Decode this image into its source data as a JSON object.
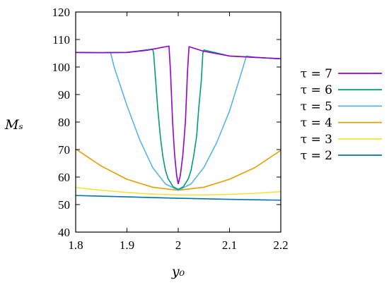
{
  "chart_data": {
    "type": "line",
    "xlabel": "y₀",
    "ylabel": "Mₛ",
    "xlim": [
      1.8,
      2.2
    ],
    "ylim": [
      40,
      120
    ],
    "x_ticks": [
      "1.8",
      "1.9",
      "2",
      "2.1",
      "2.2"
    ],
    "y_ticks": [
      "40",
      "50",
      "60",
      "70",
      "80",
      "90",
      "100",
      "110",
      "120"
    ],
    "grid": false,
    "legend_position": "right",
    "series": [
      {
        "name": "τ = 7",
        "color": "#9400d3",
        "segments": [
          [
            [
              1.8,
              105.3
            ],
            [
              1.85,
              105.2
            ],
            [
              1.9,
              105.3
            ],
            [
              1.94,
              106.1
            ],
            [
              1.97,
              107.2
            ],
            [
              1.982,
              107.6
            ],
            [
              1.985,
              98
            ],
            [
              1.989,
              80
            ],
            [
              1.993,
              68
            ],
            [
              1.997,
              60.5
            ],
            [
              2.0,
              57.5
            ]
          ],
          [
            [
              2.0,
              57.5
            ],
            [
              2.004,
              60.5
            ],
            [
              2.009,
              68
            ],
            [
              2.014,
              80
            ],
            [
              2.018,
              98
            ],
            [
              2.021,
              107.4
            ],
            [
              2.05,
              105.7
            ],
            [
              2.1,
              104
            ],
            [
              2.15,
              103.5
            ],
            [
              2.2,
              103
            ]
          ]
        ]
      },
      {
        "name": "τ = 6",
        "color": "#009e73",
        "segments": [
          [
            [
              1.8,
              105.3
            ],
            [
              1.85,
              105.2
            ],
            [
              1.9,
              105.3
            ],
            [
              1.95,
              106.5
            ],
            [
              1.952,
              105
            ],
            [
              1.956,
              95
            ],
            [
              1.96,
              85
            ],
            [
              1.965,
              75
            ],
            [
              1.97,
              67.5
            ],
            [
              1.975,
              62.5
            ],
            [
              1.98,
              59.5
            ],
            [
              1.99,
              56.5
            ],
            [
              2.0,
              55.5
            ],
            [
              2.01,
              56.5
            ],
            [
              2.02,
              59.5
            ],
            [
              2.025,
              62.5
            ],
            [
              2.03,
              67.5
            ],
            [
              2.036,
              75
            ],
            [
              2.04,
              85
            ],
            [
              2.045,
              95
            ],
            [
              2.048,
              105
            ],
            [
              2.05,
              106.2
            ],
            [
              2.1,
              104
            ],
            [
              2.15,
              103.5
            ],
            [
              2.2,
              103
            ]
          ]
        ]
      },
      {
        "name": "τ = 5",
        "color": "#56b4e9",
        "segments": [
          [
            [
              1.8,
              105.3
            ],
            [
              1.85,
              105.2
            ],
            [
              1.868,
              105.3
            ],
            [
              1.875,
              100
            ],
            [
              1.9,
              86
            ],
            [
              1.925,
              73.5
            ],
            [
              1.95,
              63.5
            ],
            [
              1.975,
              57.5
            ],
            [
              2.0,
              55.2
            ],
            [
              2.025,
              57.5
            ],
            [
              2.05,
              63.5
            ],
            [
              2.075,
              72.5
            ],
            [
              2.1,
              84
            ],
            [
              2.12,
              96
            ],
            [
              2.133,
              104
            ],
            [
              2.15,
              103.5
            ],
            [
              2.2,
              103
            ]
          ]
        ]
      },
      {
        "name": "τ = 4",
        "color": "#e69f00",
        "segments": [
          [
            [
              1.8,
              70.2
            ],
            [
              1.85,
              64
            ],
            [
              1.9,
              59.2
            ],
            [
              1.95,
              56.3
            ],
            [
              2.0,
              55.2
            ],
            [
              2.05,
              56.3
            ],
            [
              2.1,
              59.2
            ],
            [
              2.15,
              63.5
            ],
            [
              2.2,
              69.7
            ]
          ]
        ]
      },
      {
        "name": "τ = 3",
        "color": "#f0e442",
        "segments": [
          [
            [
              1.8,
              56.2
            ],
            [
              1.85,
              55.2
            ],
            [
              1.9,
              54.4
            ],
            [
              1.95,
              53.8
            ],
            [
              2.0,
              53.5
            ],
            [
              2.05,
              53.5
            ],
            [
              2.1,
              53.7
            ],
            [
              2.15,
              54.1
            ],
            [
              2.2,
              54.7
            ]
          ]
        ]
      },
      {
        "name": "τ = 2",
        "color": "#0072b2",
        "segments": [
          [
            [
              1.8,
              53.3
            ],
            [
              1.9,
              52.8
            ],
            [
              2.0,
              52.3
            ],
            [
              2.1,
              51.9
            ],
            [
              2.2,
              51.6
            ]
          ]
        ]
      }
    ]
  }
}
